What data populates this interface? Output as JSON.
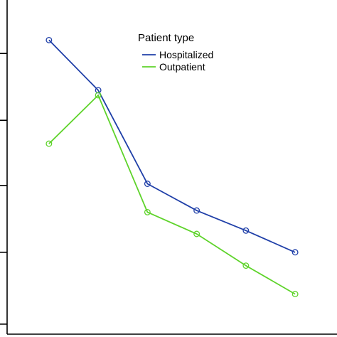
{
  "chart_data": {
    "type": "line",
    "x": [
      1,
      2,
      3,
      4,
      5,
      6
    ],
    "xlim": [
      0.15,
      6.85
    ],
    "ylim": [
      0,
      10
    ],
    "ytick_values": [
      0.3,
      2.45,
      4.45,
      6.4,
      8.4
    ],
    "grid": false,
    "legend": {
      "title": "Patient type",
      "placement": "top-right"
    },
    "series": [
      {
        "name": "Hospitalized",
        "color": "#1f3fa8",
        "values": [
          8.8,
          7.3,
          4.5,
          3.7,
          3.1,
          2.45
        ]
      },
      {
        "name": "Outpatient",
        "color": "#5ed32a",
        "values": [
          5.7,
          7.15,
          3.65,
          3.0,
          2.05,
          1.2
        ]
      }
    ]
  }
}
